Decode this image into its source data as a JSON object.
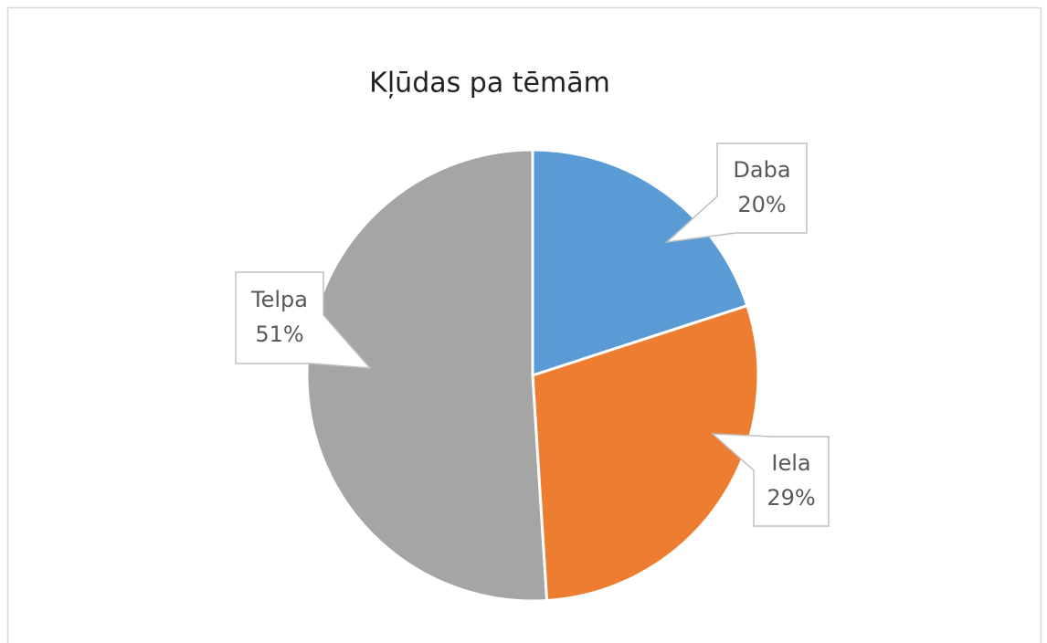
{
  "chart_data": {
    "type": "pie",
    "title": "Kļūdas pa tēmām",
    "categories": [
      "Daba",
      "Iela",
      "Telpa"
    ],
    "values": [
      20,
      29,
      51
    ],
    "value_labels": [
      "20%",
      "29%",
      "51%"
    ],
    "colors": [
      "#5b9bd5",
      "#ed7d31",
      "#a5a5a5"
    ]
  }
}
